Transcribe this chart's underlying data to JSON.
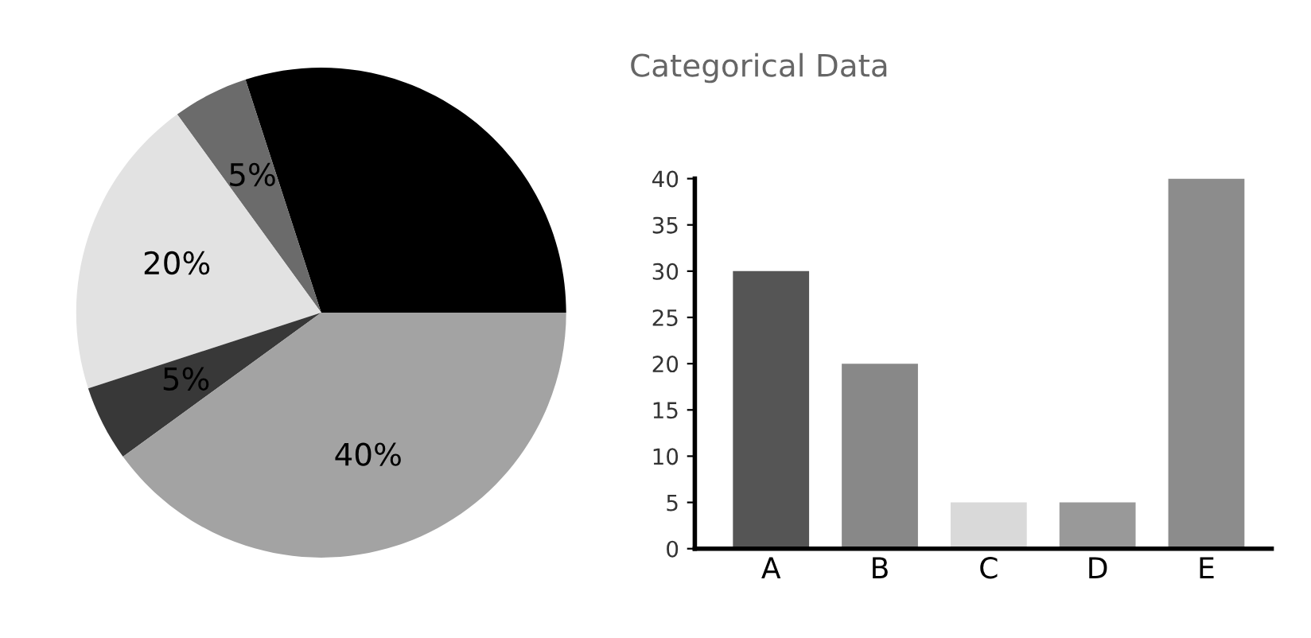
{
  "chart_data": [
    {
      "type": "pie",
      "categories": [
        null,
        null,
        null,
        null,
        null
      ],
      "values": [
        30,
        5,
        20,
        5,
        40
      ],
      "colors": [
        "#000000",
        "#6b6b6b",
        "#e2e2e2",
        "#383838",
        "#a3a3a3"
      ],
      "value_labels": [
        null,
        "5%",
        "20%",
        "5%",
        "40%"
      ]
    },
    {
      "type": "bar",
      "title": "Categorical Data",
      "categories": [
        "A",
        "B",
        "C",
        "D",
        "E"
      ],
      "values": [
        30,
        20,
        5,
        5,
        40
      ],
      "colors": [
        "#555555",
        "#888888",
        "#d9d9d9",
        "#999999",
        "#8c8c8c"
      ],
      "ylim": [
        0,
        40
      ],
      "yticks": [
        0,
        5,
        10,
        15,
        20,
        25,
        30,
        35,
        40
      ],
      "grid": false,
      "legend": false
    }
  ]
}
